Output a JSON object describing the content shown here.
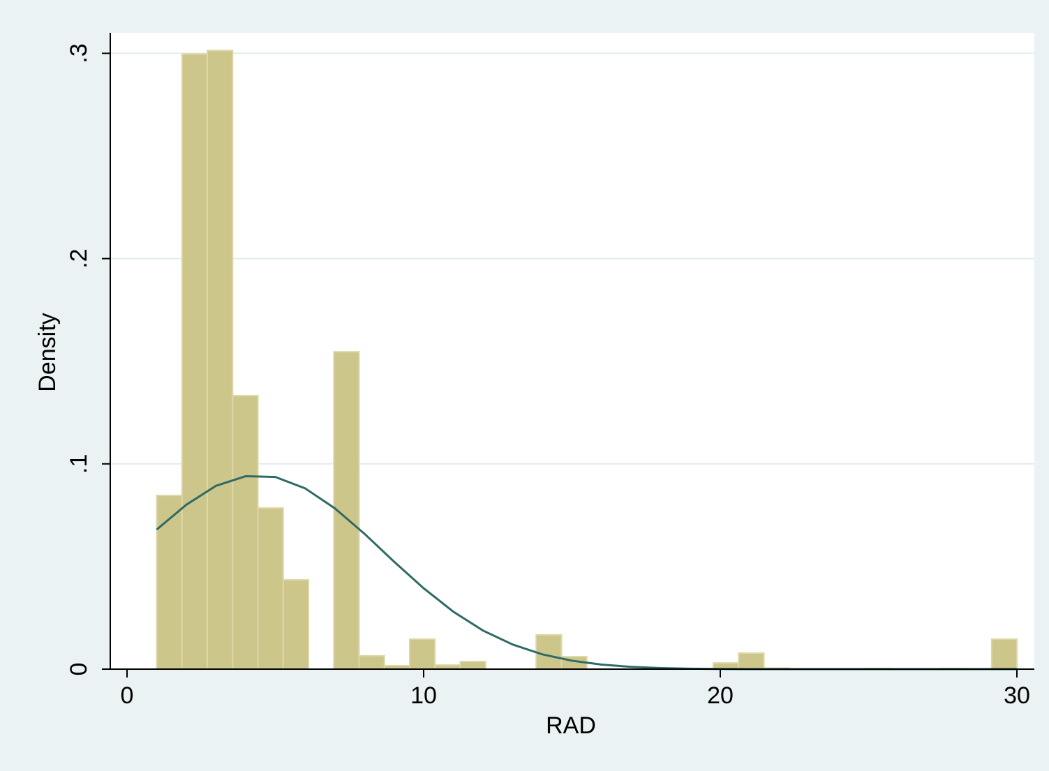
{
  "chart_data": {
    "type": "histogram",
    "x_label": "RAD",
    "y_label": "Density",
    "bins": [
      1,
      1.853,
      2.706,
      3.559,
      4.412,
      5.265,
      6.118,
      6.971,
      7.824,
      8.676,
      9.529,
      10.382,
      11.235,
      12.088,
      12.941,
      13.794,
      14.647,
      15.5,
      16.353,
      17.206,
      18.059,
      18.912,
      19.765,
      20.618,
      21.471,
      22.324,
      23.176,
      24.029,
      24.882,
      25.735,
      26.588,
      27.441,
      28.294,
      29.147,
      30
    ],
    "values": [
      0.0846,
      0.2997,
      0.3014,
      0.1332,
      0.0785,
      0.0435,
      0,
      0.1546,
      0.0065,
      0.0017,
      0.0146,
      0.002,
      0.0037,
      0,
      0,
      0.0167,
      0.0061,
      0,
      0,
      0,
      0,
      0,
      0.003,
      0.0078,
      0.0005,
      0,
      0,
      0,
      0.0003,
      0,
      0,
      0.0003,
      0,
      0.0146
    ],
    "color": "#cdc68a",
    "overlay": {
      "type": "line",
      "color": "#2f6a66",
      "x": [
        1,
        2,
        3,
        4,
        5,
        6,
        7,
        8,
        9,
        10,
        11,
        12,
        13,
        14,
        15,
        16,
        17,
        18,
        19,
        20,
        21,
        22,
        23,
        24,
        25,
        26,
        27,
        28,
        29,
        30
      ],
      "values": [
        0.068,
        0.0801,
        0.0893,
        0.094,
        0.0936,
        0.0881,
        0.0784,
        0.066,
        0.0524,
        0.0394,
        0.028,
        0.0188,
        0.012,
        0.0072,
        0.0041,
        0.0022,
        0.0011,
        0.0005,
        0.0002,
        0.0001,
        0,
        0,
        0,
        0,
        0,
        0,
        0,
        0,
        0,
        0
      ]
    },
    "xlim": [
      -0.565,
      30.588
    ],
    "ylim": [
      0,
      0.31
    ],
    "xticks": [
      0,
      10,
      20,
      30
    ],
    "yticks": [
      0,
      {
        "value": 0.1,
        "label": ".1"
      },
      {
        "value": 0.2,
        "label": ".2"
      },
      {
        "value": 0.3,
        "label": ".3"
      }
    ],
    "grid": true
  }
}
